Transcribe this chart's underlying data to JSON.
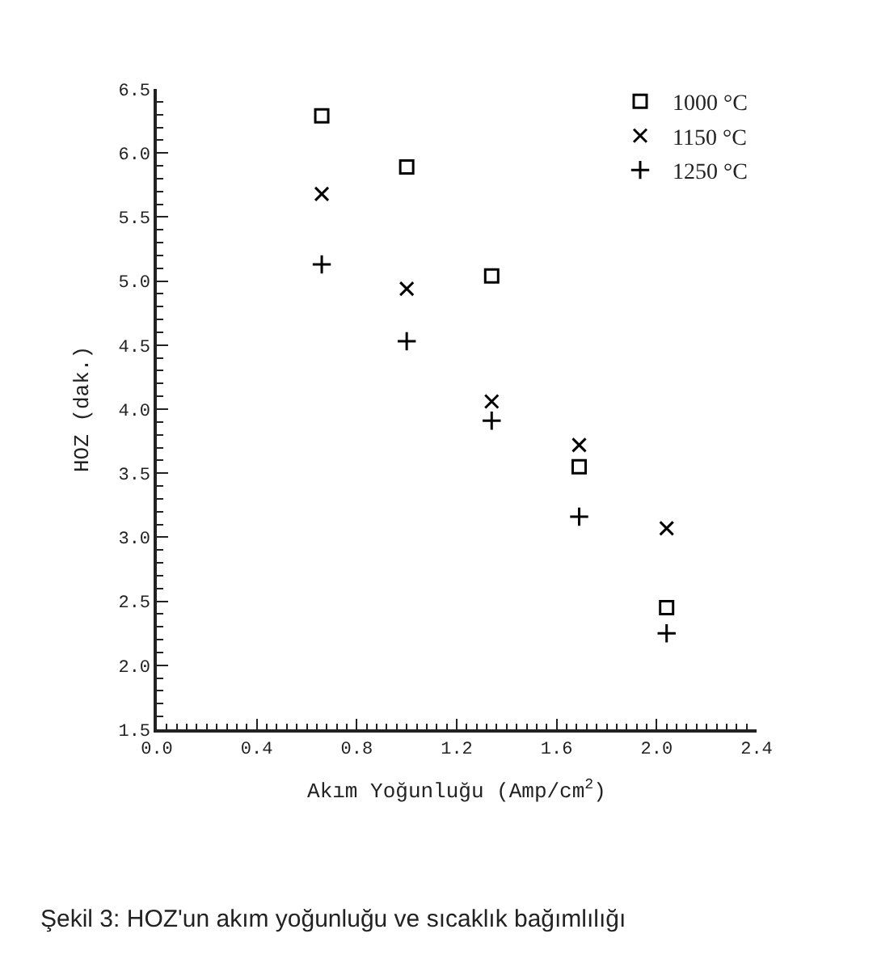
{
  "chart_data": {
    "type": "scatter",
    "xlabel": "Akım Yoğunluğu (Amp/cm$^{2}$)",
    "ylabel": "HOZ (dak.)",
    "x": [
      0.66,
      1.0,
      1.34,
      1.69,
      2.04
    ],
    "series": [
      {
        "name": "1000 °C",
        "color": "#000000",
        "marker": "square",
        "values": [
          6.29,
          5.89,
          5.04,
          3.55,
          2.45
        ]
      },
      {
        "name": "1150 °C",
        "color": "#000000",
        "marker": "cross",
        "values": [
          5.68,
          4.94,
          4.06,
          3.72,
          3.07
        ]
      },
      {
        "name": "1250 °C",
        "color": "#000000",
        "marker": "plus",
        "values": [
          5.13,
          4.53,
          3.91,
          3.16,
          2.25
        ]
      }
    ],
    "xlim": [
      0.0,
      2.4
    ],
    "xticks": [
      {
        "value": 0.0,
        "label": "0.0"
      },
      0.4,
      0.8,
      1.2,
      1.6,
      {
        "value": 2.0,
        "label": "2.0"
      },
      2.4
    ],
    "ylim": [
      1.5,
      6.5
    ],
    "yticks": [
      1.5,
      {
        "value": 2.0,
        "label": "2.0"
      },
      2.5,
      {
        "value": 3.0,
        "label": "3.0"
      },
      3.5,
      {
        "value": 4.0,
        "label": "4.0"
      },
      4.5,
      {
        "value": 5.0,
        "label": "5.0"
      },
      5.5,
      {
        "value": 6.0,
        "label": "6.0"
      },
      6.5
    ],
    "grid": false,
    "legend": "top right",
    "annotations": [
      "Şekil 3: HOZ'un akım yoğunluğu ve sıcaklık bağımlılığı"
    ]
  }
}
